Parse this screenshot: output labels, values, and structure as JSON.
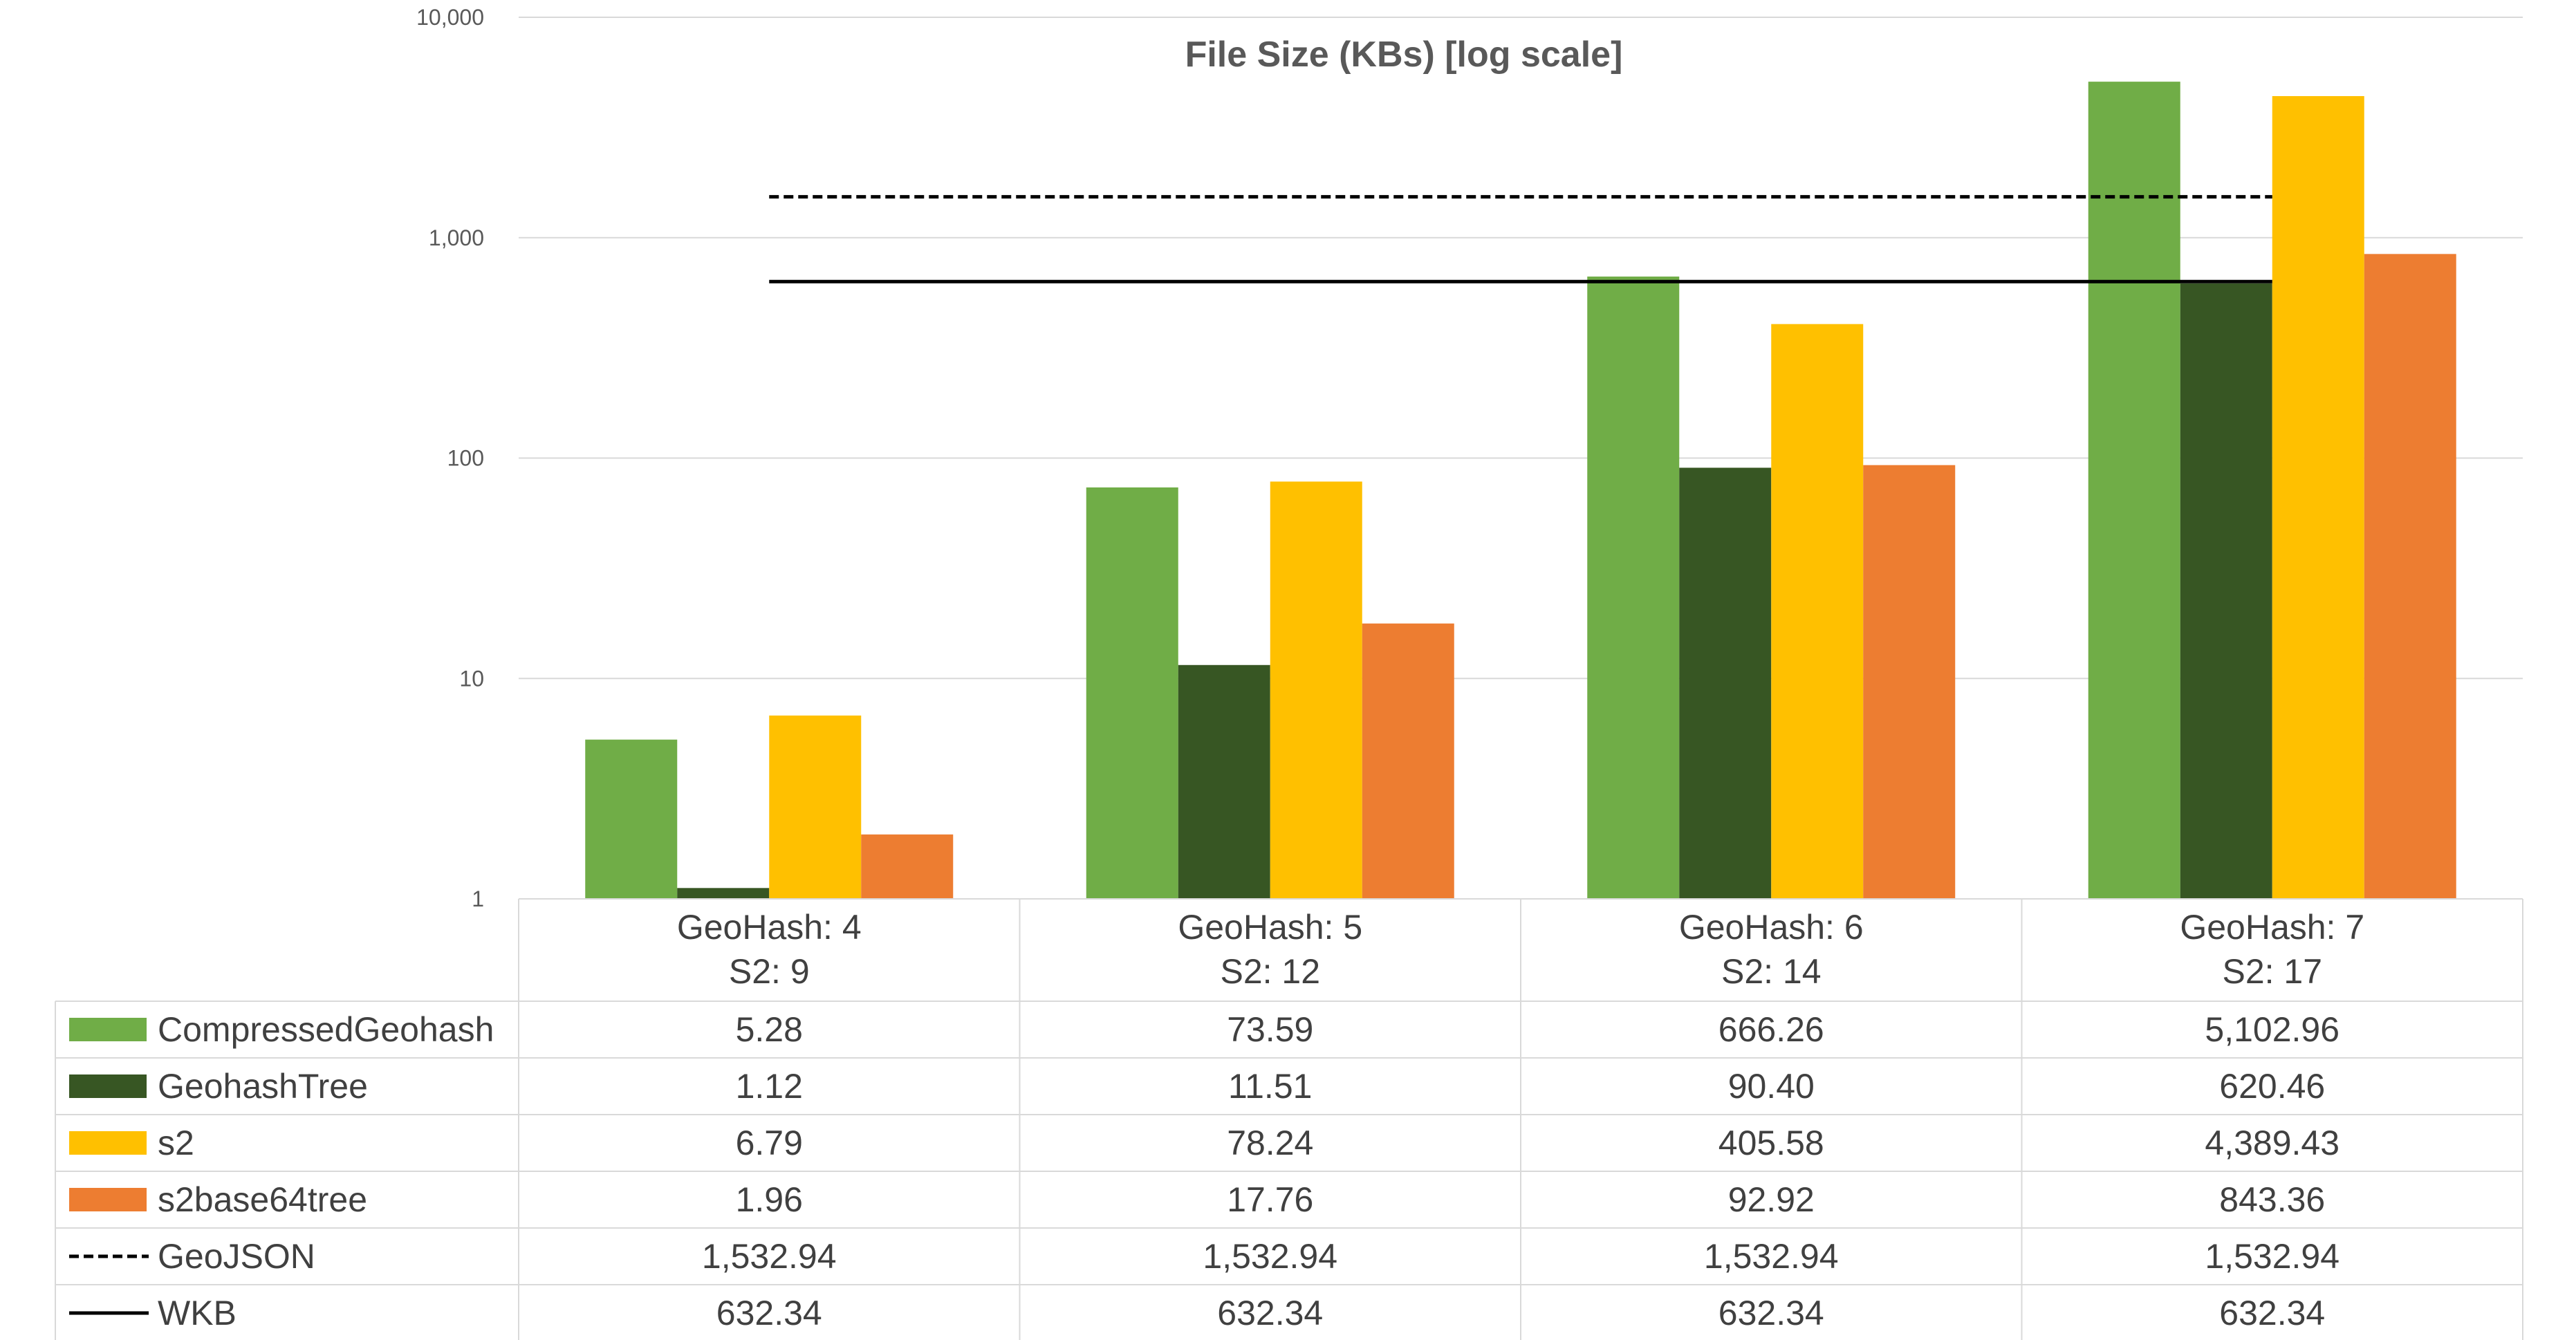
{
  "chart_data": {
    "type": "bar",
    "title": "File Size (KBs) [log scale]",
    "y_scale": "log",
    "ylim": [
      1,
      10000
    ],
    "y_ticks": [
      "1",
      "10",
      "100",
      "1,000",
      "10,000"
    ],
    "y_tick_values": [
      1,
      10,
      100,
      1000,
      10000
    ],
    "grid": true,
    "legend": "data-table",
    "categories": [
      {
        "line1": "GeoHash: 4",
        "line2": "S2: 9"
      },
      {
        "line1": "GeoHash: 5",
        "line2": "S2: 12"
      },
      {
        "line1": "GeoHash: 6",
        "line2": "S2: 14"
      },
      {
        "line1": "GeoHash: 7",
        "line2": "S2: 17"
      }
    ],
    "series": [
      {
        "name": "CompressedGeohash",
        "kind": "bar",
        "color": "#70AD47",
        "values": [
          5.28,
          73.59,
          666.26,
          5102.96
        ],
        "labels": [
          "5.28",
          "73.59",
          "666.26",
          "5,102.96"
        ]
      },
      {
        "name": "GeohashTree",
        "kind": "bar",
        "color": "#375623",
        "values": [
          1.12,
          11.51,
          90.4,
          620.46
        ],
        "labels": [
          "1.12",
          "11.51",
          "90.40",
          "620.46"
        ]
      },
      {
        "name": "s2",
        "kind": "bar",
        "color": "#FFC000",
        "values": [
          6.79,
          78.24,
          405.58,
          4389.43
        ],
        "labels": [
          "6.79",
          "78.24",
          "405.58",
          "4,389.43"
        ]
      },
      {
        "name": "s2base64tree",
        "kind": "bar",
        "color": "#ED7D31",
        "values": [
          1.96,
          17.76,
          92.92,
          843.36
        ],
        "labels": [
          "1.96",
          "17.76",
          "92.92",
          "843.36"
        ]
      },
      {
        "name": "GeoJSON",
        "kind": "line",
        "dash": "dashed",
        "color": "#000000",
        "values": [
          1532.94,
          1532.94,
          1532.94,
          1532.94
        ],
        "labels": [
          "1,532.94",
          "1,532.94",
          "1,532.94",
          "1,532.94"
        ]
      },
      {
        "name": "WKB",
        "kind": "line",
        "dash": "solid",
        "color": "#000000",
        "values": [
          632.34,
          632.34,
          632.34,
          632.34
        ],
        "labels": [
          "632.34",
          "632.34",
          "632.34",
          "632.34"
        ]
      }
    ]
  }
}
